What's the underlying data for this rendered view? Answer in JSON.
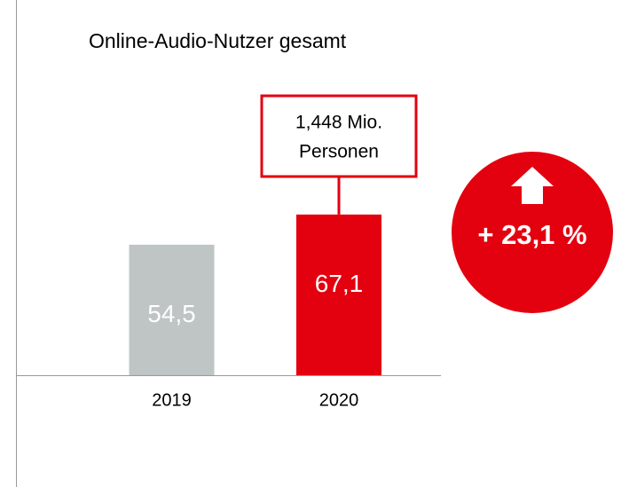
{
  "chart_data": {
    "type": "bar",
    "title": "Online-Audio-Nutzer gesamt",
    "categories": [
      "2019",
      "2020"
    ],
    "values": [
      54.5,
      67.1
    ],
    "value_labels": [
      "54,5",
      "67,1"
    ],
    "colors": [
      "#bfc4c4",
      "#e3000f"
    ],
    "annotation": [
      "1,448 Mio.",
      "Personen"
    ],
    "change_label": "+ 23,1 %"
  }
}
